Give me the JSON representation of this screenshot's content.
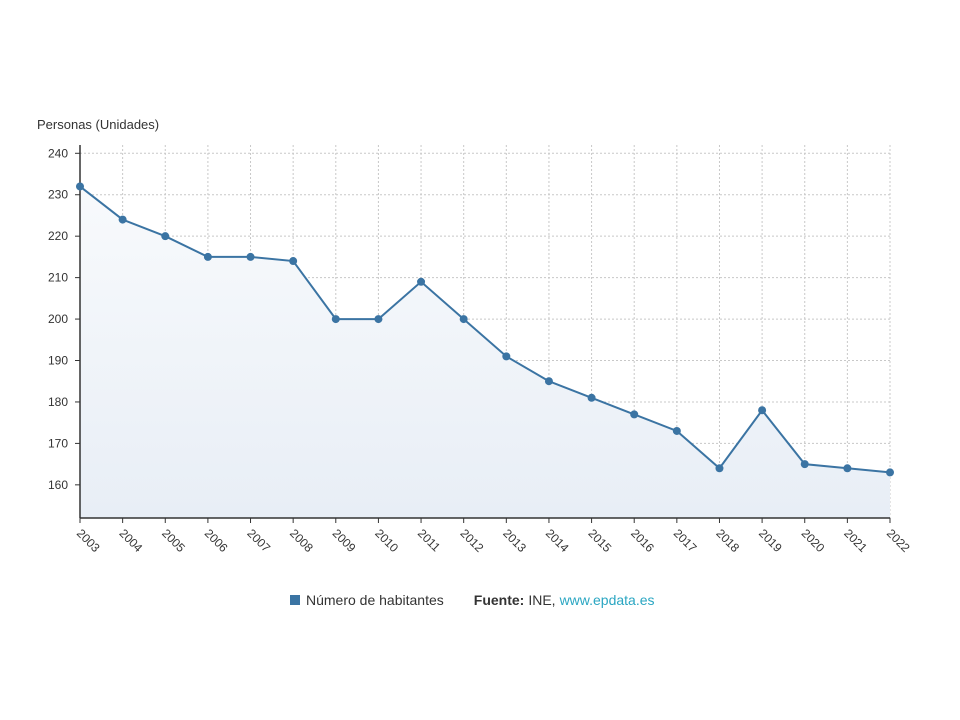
{
  "chart_data": {
    "type": "area",
    "ylabel": "Personas (Unidades)",
    "xlabel": "",
    "ylim": [
      152,
      242
    ],
    "yticks": [
      160,
      170,
      180,
      190,
      200,
      210,
      220,
      230,
      240
    ],
    "categories": [
      "2003",
      "2004",
      "2005",
      "2006",
      "2007",
      "2008",
      "2009",
      "2010",
      "2011",
      "2012",
      "2013",
      "2014",
      "2015",
      "2016",
      "2017",
      "2018",
      "2019",
      "2020",
      "2021",
      "2022"
    ],
    "series": [
      {
        "name": "Número de habitantes",
        "values": [
          232,
          224,
          220,
          215,
          215,
          214,
          200,
          200,
          209,
          200,
          191,
          185,
          181,
          177,
          173,
          164,
          178,
          165,
          164,
          163
        ]
      }
    ],
    "grid": true,
    "legend_position": "bottom",
    "colors": {
      "line": "#3b74a3",
      "fill_top": "#f6f8fb",
      "fill_bottom": "#e9eef6",
      "grid": "#c8c8c8",
      "axis": "#333333"
    }
  },
  "legend": {
    "series_label": "Número de habitantes",
    "source_key": "Fuente:",
    "source_value": "INE,",
    "source_link": "www.epdata.es"
  }
}
